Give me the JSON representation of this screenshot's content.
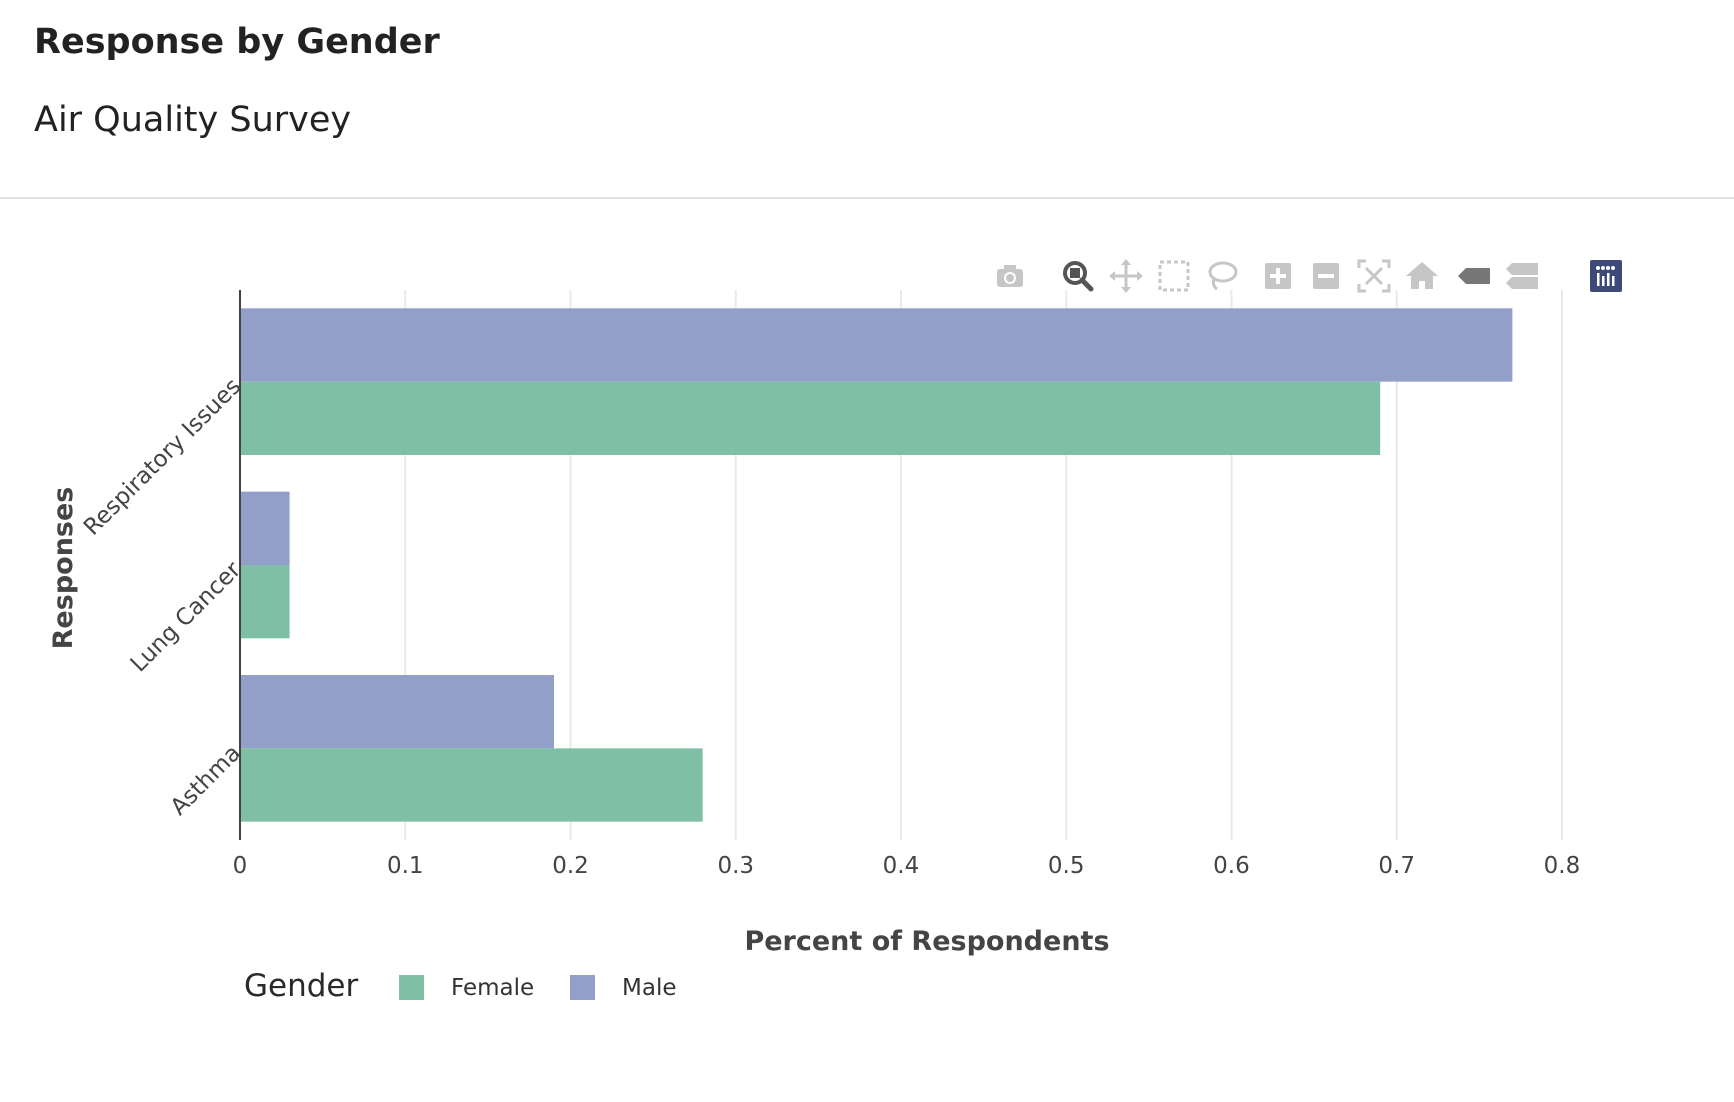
{
  "header": {
    "title": "Response by Gender",
    "subtitle": "Air Quality Survey"
  },
  "modebar": {
    "buttons": [
      {
        "name": "camera-icon",
        "active": false
      },
      {
        "name": "zoom-icon",
        "active": true
      },
      {
        "name": "pan-icon",
        "active": false
      },
      {
        "name": "box-select-icon",
        "active": false
      },
      {
        "name": "lasso-select-icon",
        "active": false
      },
      {
        "name": "zoom-in-icon",
        "active": false
      },
      {
        "name": "zoom-out-icon",
        "active": false
      },
      {
        "name": "autoscale-icon",
        "active": false
      },
      {
        "name": "reset-axes-icon",
        "active": false
      },
      {
        "name": "spike-lines-icon",
        "active": false
      },
      {
        "name": "compare-hover-icon",
        "active": false
      },
      {
        "name": "plotly-logo-icon",
        "active": false
      }
    ]
  },
  "legend": {
    "title": "Gender",
    "items": [
      {
        "label": "Female",
        "color": "#7fbfa6"
      },
      {
        "label": "Male",
        "color": "#929fc8"
      }
    ]
  },
  "chart_data": {
    "type": "bar",
    "orientation": "horizontal",
    "categories": [
      "Respiratory Issues",
      "Lung Cancer",
      "Asthma"
    ],
    "series": [
      {
        "name": "Male",
        "values": [
          0.77,
          0.03,
          0.19
        ],
        "color": "#929fc8"
      },
      {
        "name": "Female",
        "values": [
          0.69,
          0.03,
          0.28
        ],
        "color": "#7fbfa6"
      }
    ],
    "xlabel": "Percent of Respondents",
    "ylabel": "Responses",
    "xlim": [
      0,
      0.82
    ],
    "xticks": [
      0,
      0.1,
      0.2,
      0.3,
      0.4,
      0.5,
      0.6,
      0.7,
      0.8
    ],
    "xtick_labels": [
      "0",
      "0.1",
      "0.2",
      "0.3",
      "0.4",
      "0.5",
      "0.6",
      "0.7",
      "0.8"
    ],
    "grid": true,
    "legend_position": "bottom-left"
  }
}
